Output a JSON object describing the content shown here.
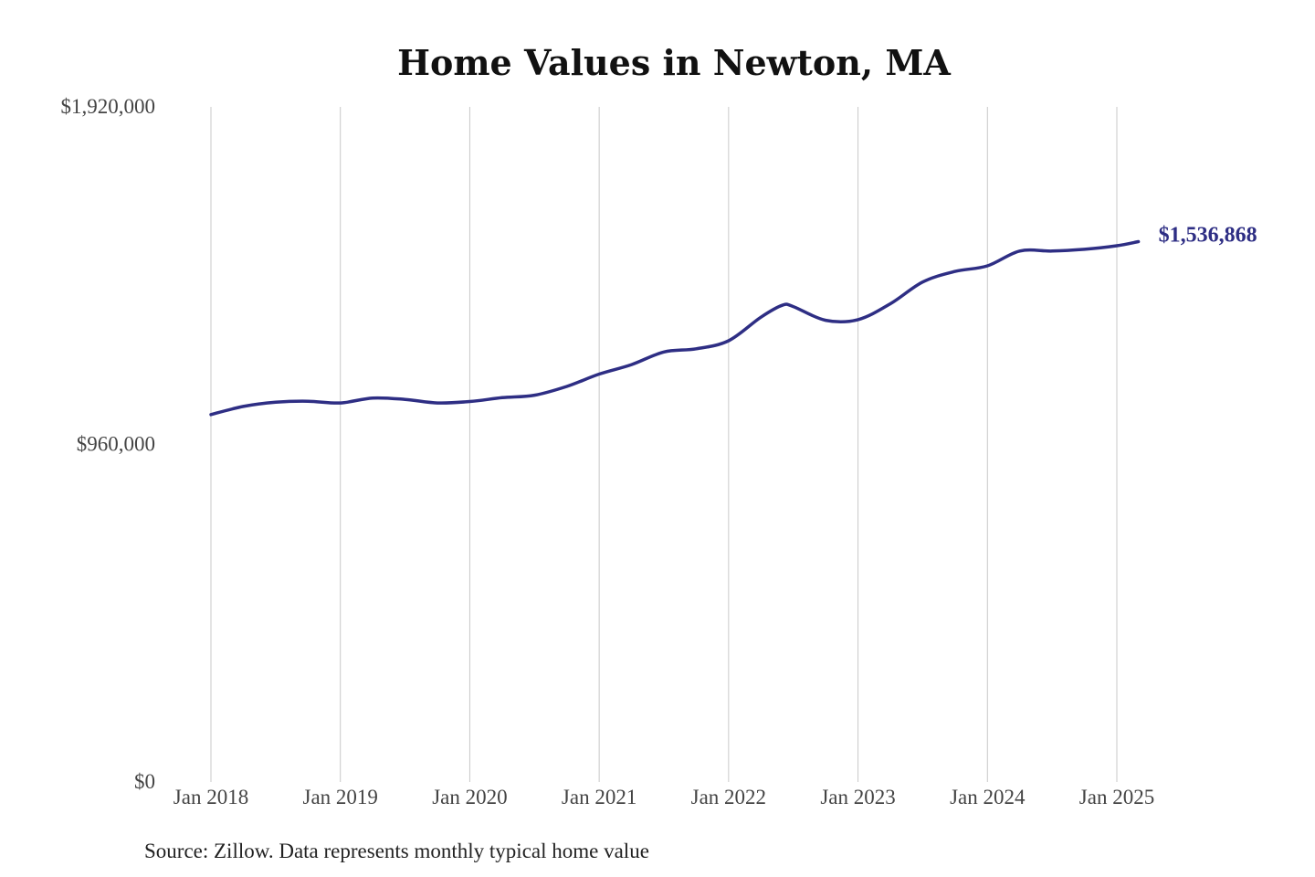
{
  "chart_data": {
    "type": "line",
    "title": "Home Values in Newton, MA",
    "xlabel": "",
    "ylabel": "",
    "source": "Source: Zillow. Data represents monthly typical home value",
    "ylim": [
      0,
      1920000
    ],
    "yticks": [
      {
        "value": 0,
        "label": "$0"
      },
      {
        "value": 960000,
        "label": "$960,000"
      },
      {
        "value": 1920000,
        "label": "$1,920,000"
      }
    ],
    "xticks": [
      {
        "value": "2018-01",
        "label": "Jan 2018"
      },
      {
        "value": "2019-01",
        "label": "Jan 2019"
      },
      {
        "value": "2020-01",
        "label": "Jan 2020"
      },
      {
        "value": "2021-01",
        "label": "Jan 2021"
      },
      {
        "value": "2022-01",
        "label": "Jan 2022"
      },
      {
        "value": "2023-01",
        "label": "Jan 2023"
      },
      {
        "value": "2024-01",
        "label": "Jan 2024"
      },
      {
        "value": "2025-01",
        "label": "Jan 2025"
      }
    ],
    "xlim": [
      "2018-01",
      "2025-03"
    ],
    "grid": {
      "vertical": true,
      "horizontal": false
    },
    "legend": "none",
    "color": "#2e2e84",
    "end_label": "$1,536,868",
    "series": [
      {
        "x": [
          "2018-01",
          "2018-04",
          "2018-07",
          "2018-10",
          "2019-01",
          "2019-04",
          "2019-07",
          "2019-10",
          "2020-01",
          "2020-04",
          "2020-07",
          "2020-10",
          "2021-01",
          "2021-04",
          "2021-07",
          "2021-10",
          "2022-01",
          "2022-04",
          "2022-06",
          "2022-07",
          "2022-10",
          "2023-01",
          "2023-04",
          "2023-07",
          "2023-10",
          "2024-01",
          "2024-04",
          "2024-07",
          "2024-10",
          "2025-01",
          "2025-03"
        ],
        "y": [
          1045000,
          1068000,
          1080000,
          1083000,
          1078000,
          1092000,
          1088000,
          1078000,
          1082000,
          1093000,
          1100000,
          1125000,
          1160000,
          1187000,
          1223000,
          1232000,
          1255000,
          1322000,
          1356000,
          1352000,
          1313000,
          1315000,
          1360000,
          1422000,
          1452000,
          1468000,
          1510000,
          1510000,
          1515000,
          1525000,
          1536868
        ]
      }
    ]
  }
}
